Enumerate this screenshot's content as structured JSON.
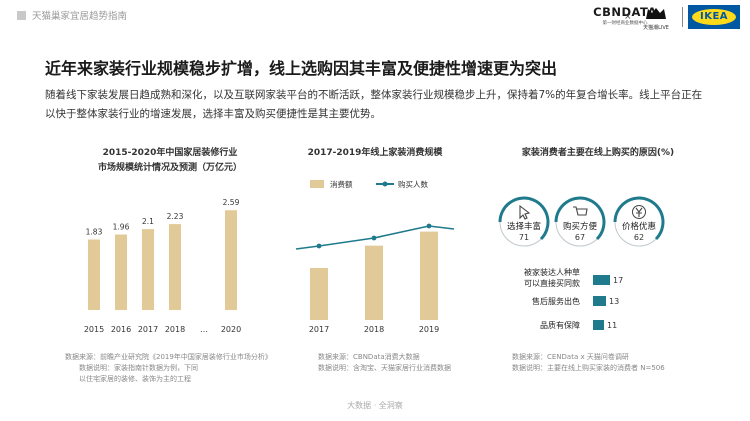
{
  "header": {
    "title": "天猫巢家宜居趋势指南",
    "logos": {
      "cbndata": "CBNDATA",
      "cbndata_sub": "第一财经商业数据中心",
      "x": "×",
      "tmall": "天猫潮LIVE",
      "ikea": "IKEA"
    }
  },
  "main": {
    "title": "近年来家装行业规模稳步扩增，线上选购因其丰富及便捷性增速更为突出",
    "intro": "随着线下家装发展日趋成熟和深化，以及互联网家装平台的不断活跃，整体家装行业规模稳步上升，保持着7%的年复合增长率。线上平台正在以快于整体家装行业的增速发展，选择丰富及购买便捷性是其主要优势。"
  },
  "chart_data": [
    {
      "type": "bar",
      "title": "2015-2020年中国家居装修行业",
      "subtitle": "市场规模统计情况及预测（万亿元）",
      "categories": [
        "2015",
        "2016",
        "2017",
        "2018",
        "…",
        "2020"
      ],
      "values": [
        1.83,
        1.96,
        2.1,
        2.23,
        null,
        2.59
      ],
      "labels": [
        "1.83",
        "1.96",
        "2.1",
        "2.23",
        "",
        "2.59"
      ],
      "color": "#e2c998",
      "source": "数据来源：前瞻产业研究院《2019年中国家居装修行业市场分析》",
      "note1": "数据说明：家装指南针数据为例，下同",
      "note2": "以住宅家居的装修、装饰为主的工程"
    },
    {
      "type": "bar+line",
      "title": "2017-2019年线上家装消费规模",
      "categories": [
        "2017",
        "2018",
        "2019"
      ],
      "bar_values": [
        1.0,
        1.43,
        1.7
      ],
      "line_values": [
        1.85,
        2.05,
        2.35
      ],
      "series": [
        {
          "name": "消费额",
          "color": "#e2c998"
        },
        {
          "name": "购买人数",
          "color": "#1f7a8c"
        }
      ],
      "source": "数据来源：CBNData消费大数据",
      "note1": "数据说明：含淘宝、天猫家居行业消费数据"
    },
    {
      "type": "bubble+bar",
      "title": "家装消费者主要在线上购买的原因(%)",
      "circles": [
        {
          "label": "选择丰富",
          "value": "71",
          "icon": "cursor-icon"
        },
        {
          "label": "购买方便",
          "value": "67",
          "icon": "cart-icon"
        },
        {
          "label": "价格优惠",
          "value": "62",
          "icon": "yen-icon"
        }
      ],
      "bars": [
        {
          "label1": "被家装达人种草",
          "label2": "可以直接买同款",
          "value": 17
        },
        {
          "label1": "售后服务出色",
          "label2": "",
          "value": 13
        },
        {
          "label1": "品质有保障",
          "label2": "",
          "value": 11
        }
      ],
      "accent": "#1f7a8c",
      "source": "数据来源：CENData x 天猫问卷调研",
      "note1": "数据说明：主要在线上购买家装的消费者 N=506"
    }
  ],
  "footer": {
    "text": "大数据 · 全洞察"
  }
}
